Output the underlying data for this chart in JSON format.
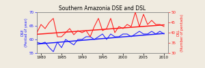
{
  "title": "Southern Amazonia DSE and DSL",
  "years": [
    1979,
    1980,
    1981,
    1982,
    1983,
    1984,
    1985,
    1986,
    1987,
    1988,
    1989,
    1990,
    1991,
    1992,
    1993,
    1994,
    1995,
    1996,
    1997,
    1998,
    1999,
    2000,
    2001,
    2002,
    2003,
    2004,
    2005,
    2006,
    2007,
    2008,
    2009,
    2010
  ],
  "dse": [
    59.0,
    58.5,
    59.0,
    57.0,
    55.5,
    59.0,
    57.0,
    60.0,
    59.0,
    58.0,
    60.0,
    60.0,
    61.0,
    61.0,
    60.0,
    61.0,
    62.0,
    60.0,
    62.0,
    61.0,
    61.0,
    62.0,
    62.0,
    61.0,
    62.0,
    63.0,
    62.0,
    62.0,
    63.0,
    62.0,
    63.0,
    62.0
  ],
  "dsl": [
    40,
    44,
    42,
    45,
    47,
    38,
    38,
    40,
    42,
    39,
    41,
    40,
    41,
    38,
    43,
    47,
    41,
    42,
    47,
    40,
    43,
    42,
    44,
    43,
    50,
    43,
    49,
    44,
    46,
    44,
    44,
    43
  ],
  "dse_trend": [
    58.3,
    62.2
  ],
  "dsl_trend": [
    39.2,
    43.8
  ],
  "ylim_left": [
    55,
    70
  ],
  "ylim_right": [
    30,
    50
  ],
  "yticks_left": [
    55,
    60,
    65,
    70
  ],
  "yticks_right": [
    30,
    35,
    40,
    45,
    50
  ],
  "xticks": [
    1980,
    1985,
    1990,
    1995,
    2000,
    2005,
    2010
  ],
  "xlim": [
    1979,
    2011
  ],
  "ylabel_left": "DSE\n(Pentad of year)",
  "ylabel_right": "DSL\n(Number of pentads)",
  "title_fontsize": 5.5,
  "tick_labelsize": 4.0,
  "ylabel_fontsize": 3.8,
  "dse_color": "#1a1aff",
  "dsl_color": "#ff1a1a",
  "trend_lw": 1.1,
  "data_lw": 0.75,
  "bg_color": "#f0ebe0"
}
